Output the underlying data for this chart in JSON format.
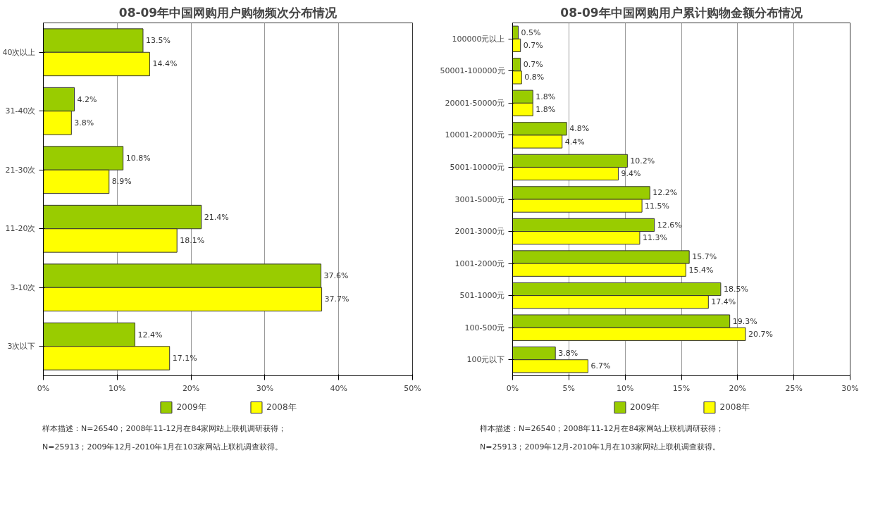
{
  "chart_data": [
    {
      "type": "bar",
      "orientation": "horizontal",
      "title": "08-09年中国网购用户购物频次分布情况",
      "categories": [
        "40次以上",
        "31-40次",
        "21-30次",
        "11-20次",
        "3-10次",
        "3次以下"
      ],
      "series": [
        {
          "name": "2009年",
          "color": "#99cc00",
          "values": [
            13.5,
            4.2,
            10.8,
            21.4,
            37.6,
            12.4
          ],
          "value_labels": [
            "13.5%",
            "4.2%",
            "10.8%",
            "21.4%",
            "37.6%",
            "12.4%"
          ]
        },
        {
          "name": "2008年",
          "color": "#ffff00",
          "values": [
            14.4,
            3.8,
            8.9,
            18.1,
            37.7,
            17.1
          ],
          "value_labels": [
            "14.4%",
            "3.8%",
            "8.9%",
            "18.1%",
            "37.7%",
            "17.1%"
          ]
        }
      ],
      "xlim": [
        0,
        50
      ],
      "xticks": [
        {
          "value": 0,
          "label": "0%"
        },
        {
          "value": 10,
          "label": "10%"
        },
        {
          "value": 20,
          "label": "20%"
        },
        {
          "value": 30,
          "label": "30%"
        },
        {
          "value": 40,
          "label": "40%"
        },
        {
          "value": 50,
          "label": "50%"
        }
      ],
      "grid": "x",
      "legend": "bottom",
      "annotations": [
        "样本描述：N=26540；2008年11-12月在84家网站上联机调研获得；",
        "N=25913；2009年12月-2010年1月在103家网站上联机调查获得。"
      ]
    },
    {
      "type": "bar",
      "orientation": "horizontal",
      "title": "08-09年中国网购用户累计购物金额分布情况",
      "categories": [
        "100000元以上",
        "50001-100000元",
        "20001-50000元",
        "10001-20000元",
        "5001-10000元",
        "3001-5000元",
        "2001-3000元",
        "1001-2000元",
        "501-1000元",
        "100-500元",
        "100元以下"
      ],
      "series": [
        {
          "name": "2009年",
          "color": "#99cc00",
          "values": [
            0.5,
            0.7,
            1.8,
            4.8,
            10.2,
            12.2,
            12.6,
            15.7,
            18.5,
            19.3,
            3.8
          ],
          "value_labels": [
            "0.5%",
            "0.7%",
            "1.8%",
            "4.8%",
            "10.2%",
            "12.2%",
            "12.6%",
            "15.7%",
            "18.5%",
            "19.3%",
            "3.8%"
          ]
        },
        {
          "name": "2008年",
          "color": "#ffff00",
          "values": [
            0.7,
            0.8,
            1.8,
            4.4,
            9.4,
            11.5,
            11.3,
            15.4,
            17.4,
            20.7,
            6.7
          ],
          "value_labels": [
            "0.7%",
            "0.8%",
            "1.8%",
            "4.4%",
            "9.4%",
            "11.5%",
            "11.3%",
            "15.4%",
            "17.4%",
            "20.7%",
            "6.7%"
          ]
        }
      ],
      "xlim": [
        0,
        30
      ],
      "xticks": [
        {
          "value": 0,
          "label": "0%"
        },
        {
          "value": 5,
          "label": "5%"
        },
        {
          "value": 10,
          "label": "10%"
        },
        {
          "value": 15,
          "label": "15%"
        },
        {
          "value": 20,
          "label": "20%"
        },
        {
          "value": 25,
          "label": "25%"
        },
        {
          "value": 30,
          "label": "30%"
        }
      ],
      "grid": "x",
      "legend": "bottom",
      "annotations": [
        "样本描述：N=26540；2008年11-12月在84家网站上联机调研获得；",
        "N=25913；2009年12月-2010年1月在103家网站上联机调查获得。"
      ]
    }
  ]
}
